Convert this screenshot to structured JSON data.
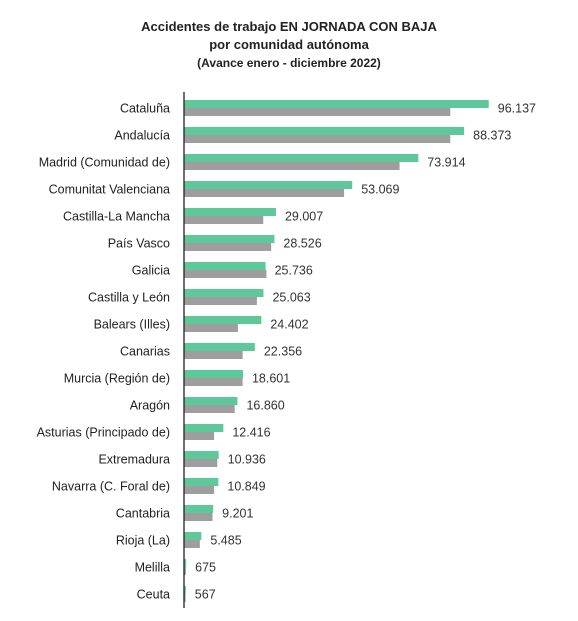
{
  "chart_data": {
    "type": "bar",
    "orientation": "horizontal",
    "title": "Accidentes de trabajo EN JORNADA CON BAJA",
    "title_line2": "por comunidad autónoma",
    "subtitle": "(Avance enero - diciembre 2022)",
    "categories": [
      "Cataluña",
      "Andalucía",
      "Madrid (Comunidad de)",
      "Comunitat Valenciana",
      "Castilla-La Mancha",
      "País Vasco",
      "Galicia",
      "Castilla y León",
      "Balears (Illes)",
      "Canarias",
      "Murcia (Región de)",
      "Aragón",
      "Asturias (Principado de)",
      "Extremadura",
      "Navarra (C. Foral de)",
      "Cantabria",
      "Rioja (La)",
      "Melilla",
      "Ceuta"
    ],
    "values": [
      96137,
      88373,
      73914,
      53069,
      29007,
      28526,
      25736,
      25063,
      24402,
      22356,
      18601,
      16860,
      12416,
      10936,
      10849,
      9201,
      5485,
      675,
      567
    ],
    "value_labels": [
      "96.137",
      "88.373",
      "73.914",
      "53.069",
      "29.007",
      "28.526",
      "25.736",
      "25.063",
      "24.402",
      "22.356",
      "18.601",
      "16.860",
      "12.416",
      "10.936",
      "10.849",
      "9.201",
      "5.485",
      "675",
      "567"
    ],
    "secondary_values": [
      84000,
      84000,
      68000,
      50500,
      25000,
      27500,
      26000,
      23000,
      17000,
      18500,
      18500,
      16000,
      9500,
      10500,
      9500,
      9000,
      5000,
      600,
      500
    ],
    "xlim": [
      0,
      100000
    ],
    "grid": false,
    "legend": "none"
  },
  "colors": {
    "primary_bar": "#5ec89a",
    "secondary_bar": "#9e9e9e",
    "axis": "#222222"
  }
}
